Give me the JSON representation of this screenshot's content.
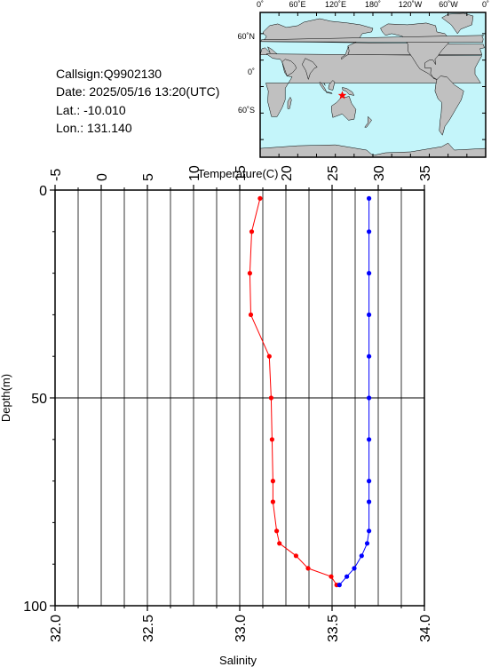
{
  "info": {
    "callsign": "Callsign:Q9902130",
    "date": "Date:  2025/05/16 13:20(UTC)",
    "lat": "Lat.:  -10.010",
    "lon": "Lon.:  131.140"
  },
  "map": {
    "top_labels": [
      "0˚",
      "60˚E",
      "120˚E",
      "180˚",
      "120˚W",
      "60˚W",
      "0˚"
    ],
    "left_labels": [
      "60˚N",
      "0˚",
      "60˚S"
    ],
    "station_lat": -10.01,
    "station_lon": 131.14,
    "ocean_color": "#c4f5fa",
    "land_color": "#c0c0c0",
    "marker_color": "#ff0000"
  },
  "chart_data": {
    "type": "line",
    "title": "",
    "y_axis": {
      "label": "Depth(m)",
      "range": [
        0,
        100
      ],
      "inverted": true,
      "ticks": [
        "0",
        "50",
        "100"
      ]
    },
    "top_axis": {
      "label": "Temperature(C)",
      "range": [
        -5,
        35
      ],
      "ticks": [
        "-5",
        "0",
        "5",
        "10",
        "15",
        "20",
        "25",
        "30",
        "35"
      ]
    },
    "bottom_axis": {
      "label": "Salinity",
      "range": [
        32.0,
        34.0
      ],
      "ticks": [
        "32.0",
        "32.5",
        "33.0",
        "33.5",
        "34.0"
      ]
    },
    "grid": true,
    "series": [
      {
        "variable": "temperature",
        "axis": "top",
        "color": "#ff0000",
        "points": [
          [
            17.2,
            2
          ],
          [
            16.3,
            10
          ],
          [
            16.1,
            20
          ],
          [
            16.2,
            30
          ],
          [
            18.2,
            40
          ],
          [
            18.4,
            50
          ],
          [
            18.5,
            60
          ],
          [
            18.6,
            70
          ],
          [
            18.6,
            75
          ],
          [
            19.0,
            82
          ],
          [
            19.3,
            85
          ],
          [
            21.1,
            88
          ],
          [
            22.4,
            91
          ],
          [
            24.9,
            93
          ],
          [
            25.5,
            95
          ]
        ]
      },
      {
        "variable": "salinity",
        "axis": "bottom",
        "color": "#0000ff",
        "points": [
          [
            33.7,
            2
          ],
          [
            33.7,
            10
          ],
          [
            33.7,
            20
          ],
          [
            33.7,
            30
          ],
          [
            33.7,
            40
          ],
          [
            33.7,
            50
          ],
          [
            33.7,
            60
          ],
          [
            33.7,
            70
          ],
          [
            33.7,
            75
          ],
          [
            33.7,
            82
          ],
          [
            33.69,
            85
          ],
          [
            33.66,
            88
          ],
          [
            33.62,
            91
          ],
          [
            33.58,
            93
          ],
          [
            33.54,
            95
          ]
        ]
      }
    ]
  }
}
